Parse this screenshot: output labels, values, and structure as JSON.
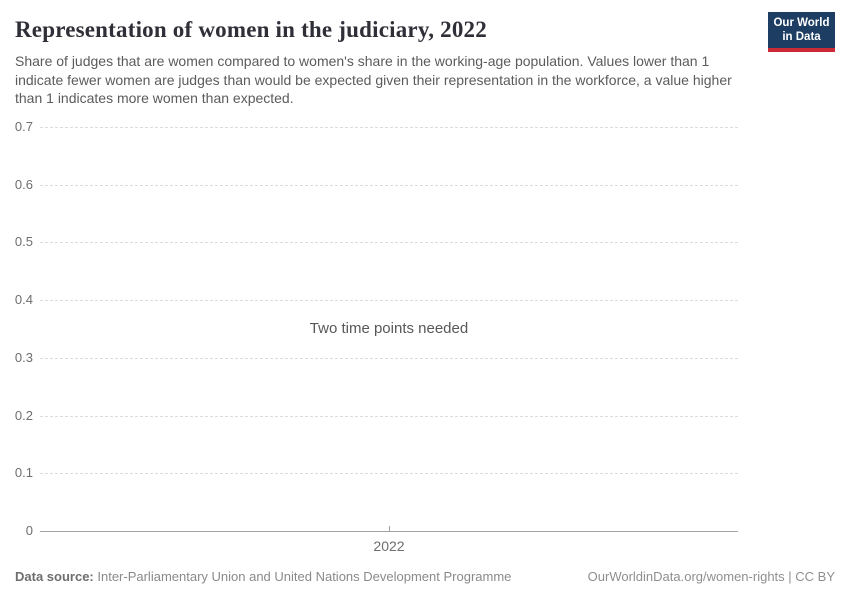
{
  "header": {
    "title": "Representation of women in the judiciary, 2022",
    "subtitle": "Share of judges that are women compared to women's share in the working-age population. Values lower than 1 indicate fewer women are judges than would be expected given their representation in the workforce, a value higher than 1 indicates more women than expected.",
    "logo": {
      "line1": "Our World",
      "line2": "in Data"
    }
  },
  "chart_data": {
    "type": "line",
    "title": "Representation of women in the judiciary, 2022",
    "series": [],
    "empty_state_message": "Two time points needed",
    "xtick_labels": [
      "2022"
    ],
    "yticks": [
      0,
      0.1,
      0.2,
      0.3,
      0.4,
      0.5,
      0.6,
      0.7
    ],
    "ytick_labels": [
      "0",
      "0.1",
      "0.2",
      "0.3",
      "0.4",
      "0.5",
      "0.6",
      "0.7"
    ],
    "ylim": [
      0,
      0.7
    ],
    "xlabel": "",
    "ylabel": "",
    "grid": "horizontal-dashed",
    "legend": "none"
  },
  "footer": {
    "source_label": "Data source:",
    "source_text": " Inter-Parliamentary Union and United Nations Development Programme",
    "rights_text": "OurWorldinData.org/women-rights | CC BY"
  },
  "colors": {
    "background": "#ffffff",
    "logo_bg": "#1d3d63",
    "logo_accent": "#cc2a36",
    "title_text": "#2f2f38",
    "subtitle_text": "#5b5b5b",
    "axis_tick_label": "#6e6e6e",
    "gridline": "#dcdcdc",
    "axis_line": "#a3a3a3",
    "empty_message_text": "#585858",
    "footer_text": "#8a8a8a"
  }
}
